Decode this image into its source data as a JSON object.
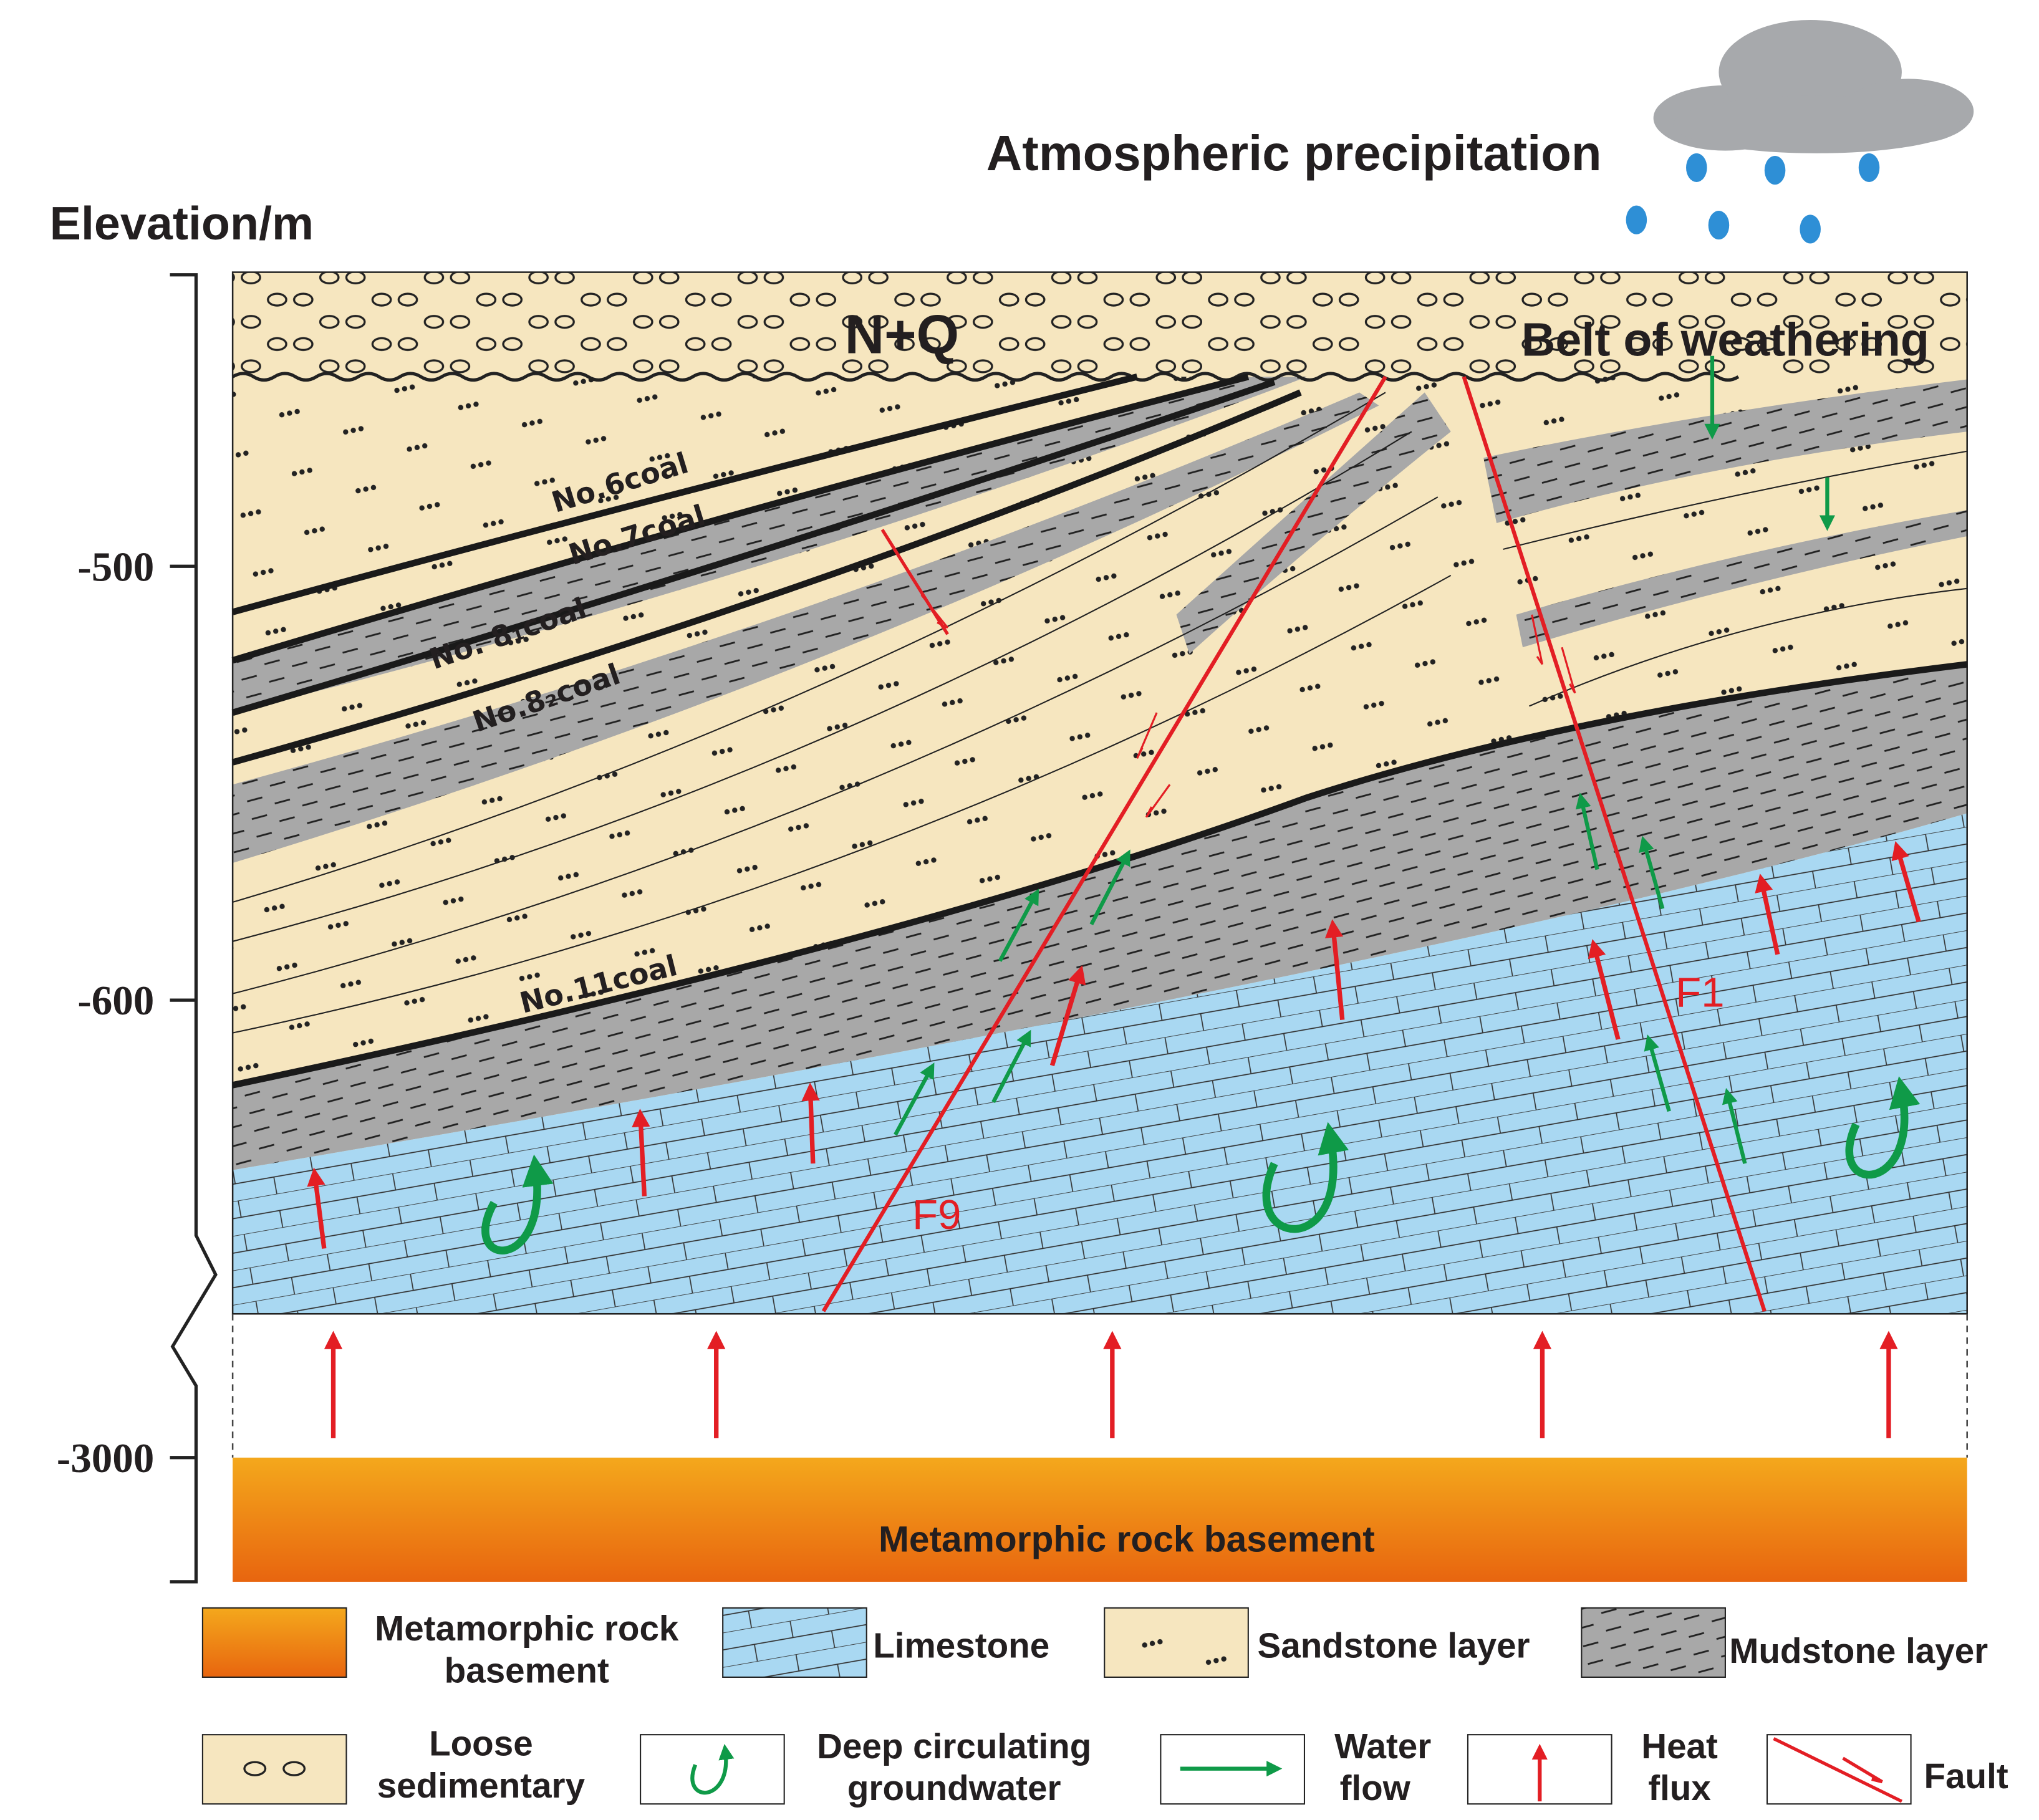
{
  "header": {
    "title": "Atmospheric precipitation"
  },
  "axis": {
    "label": "Elevation/m",
    "ticks": [
      "-500",
      "-600",
      "-3000"
    ]
  },
  "labels": {
    "cover": "N+Q",
    "weathering": "Belt of weathering",
    "coals": [
      "No.6coal",
      "No.7coal",
      "No. 8₁coal",
      "No.8₂coal",
      "No.11coal"
    ],
    "faults": [
      "F9",
      "F1"
    ],
    "basement": "Metamorphic rock basement"
  },
  "legend": [
    {
      "lines": [
        "Metamorphic rock",
        "basement"
      ]
    },
    {
      "lines": [
        "Limestone"
      ]
    },
    {
      "lines": [
        "Sandstone layer"
      ]
    },
    {
      "lines": [
        "Mudstone layer"
      ]
    },
    {
      "lines": [
        "Loose",
        "sedimentary"
      ]
    },
    {
      "lines": [
        "Deep circulating",
        "groundwater"
      ]
    },
    {
      "lines": [
        "Water",
        "flow"
      ]
    },
    {
      "lines": [
        "Heat",
        "flux"
      ]
    },
    {
      "lines": [
        "Fault"
      ]
    }
  ]
}
